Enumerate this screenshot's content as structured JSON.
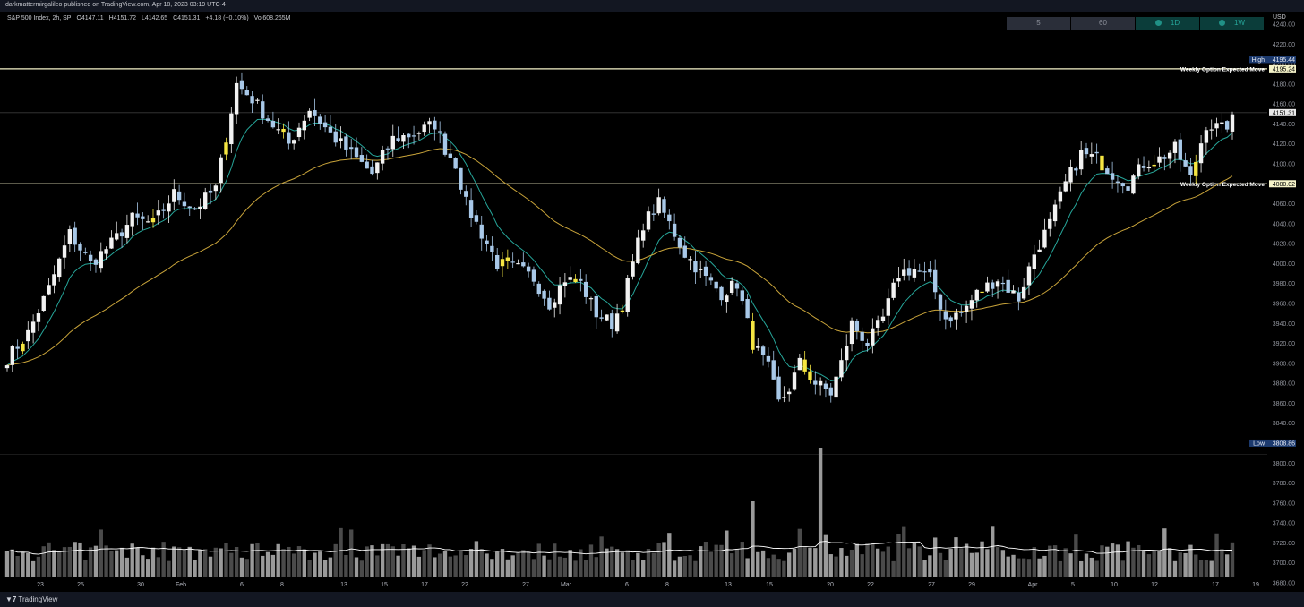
{
  "publisher_line": "darkmattermirgalileo published on TradingView.com, Apr 18, 2023 03:19 UTC-4",
  "legend": {
    "symbol": "S&P 500 Index, 2h, SP",
    "open": "O4147.11",
    "high": "H4151.72",
    "low": "L4142.65",
    "close": "C4151.31",
    "change": "+4.18 (+0.10%)",
    "volume": "Vol608.265M"
  },
  "timeframes": [
    {
      "label": "5",
      "active": false
    },
    {
      "label": "60",
      "active": false
    },
    {
      "label": "1D",
      "active": true
    },
    {
      "label": "1W",
      "active": true
    }
  ],
  "currency": "USD",
  "footer_brand": "TradingView",
  "colors": {
    "background": "#000000",
    "candle_up": "#f2f2f2",
    "candle_down": "#a8c8e8",
    "candle_highlight": "#f5e642",
    "ema_fast": "#26a69a",
    "ema_slow": "#c9a43a",
    "level_line": "#f5f3c9",
    "volume_bar": "#8a8a8a",
    "volume_ma": "#ffffff"
  },
  "chart_data": {
    "type": "candlestick",
    "title": "",
    "xlabel": "",
    "ylabel": "USD",
    "ylim": [
      3680,
      4240
    ],
    "y_ticks": [
      "4240.00",
      "4220.00",
      "4200.00",
      "4180.00",
      "4160.00",
      "4140.00",
      "4120.00",
      "4100.00",
      "4080.00",
      "4060.00",
      "4040.00",
      "4020.00",
      "4000.00",
      "3980.00",
      "3960.00",
      "3940.00",
      "3920.00",
      "3900.00",
      "3880.00",
      "3860.00",
      "3840.00",
      "3820.00",
      "3800.00",
      "3780.00",
      "3760.00",
      "3740.00",
      "3720.00",
      "3700.00",
      "3680.00"
    ],
    "x_ticks": [
      "23",
      "25",
      "30",
      "Feb",
      "6",
      "8",
      "13",
      "15",
      "17",
      "22",
      "27",
      "Mar",
      "6",
      "8",
      "13",
      "15",
      "20",
      "22",
      "27",
      "29",
      "Apr",
      "5",
      "10",
      "12",
      "17",
      "19"
    ],
    "horizontal_levels": [
      {
        "label": "Weekly Option Expected Move",
        "value": 4195.24,
        "value_text": "4195.24"
      },
      {
        "label": "Weekly Option Expected Move",
        "value": 4080.02,
        "value_text": "4080.02"
      }
    ],
    "price_tags": [
      {
        "label": "High",
        "value": 4195.44,
        "value_text": "4195.44"
      },
      {
        "label": "",
        "value": 4151.31,
        "value_text": "4151.31"
      },
      {
        "label": "Low",
        "value": 3808.86,
        "value_text": "3808.86"
      }
    ],
    "close_path": [
      [
        0,
        3905
      ],
      [
        4,
        3930
      ],
      [
        8,
        3975
      ],
      [
        12,
        4030
      ],
      [
        16,
        4000
      ],
      [
        20,
        4020
      ],
      [
        24,
        4045
      ],
      [
        28,
        4040
      ],
      [
        32,
        4070
      ],
      [
        36,
        4055
      ],
      [
        40,
        4075
      ],
      [
        44,
        4180
      ],
      [
        47,
        4165
      ],
      [
        50,
        4145
      ],
      [
        54,
        4120
      ],
      [
        58,
        4155
      ],
      [
        62,
        4130
      ],
      [
        66,
        4110
      ],
      [
        70,
        4090
      ],
      [
        74,
        4125
      ],
      [
        78,
        4130
      ],
      [
        82,
        4140
      ],
      [
        84,
        4115
      ],
      [
        86,
        4100
      ],
      [
        88,
        4060
      ],
      [
        90,
        4040
      ],
      [
        94,
        4000
      ],
      [
        98,
        3995
      ],
      [
        101,
        3985
      ],
      [
        104,
        3960
      ],
      [
        107,
        3985
      ],
      [
        110,
        3980
      ],
      [
        113,
        3950
      ],
      [
        116,
        3940
      ],
      [
        118,
        3960
      ],
      [
        120,
        4000
      ],
      [
        122,
        4040
      ],
      [
        125,
        4060
      ],
      [
        127,
        4040
      ],
      [
        130,
        4010
      ],
      [
        134,
        3985
      ],
      [
        137,
        3970
      ],
      [
        140,
        3980
      ],
      [
        143,
        3920
      ],
      [
        146,
        3895
      ],
      [
        148,
        3860
      ],
      [
        150,
        3875
      ],
      [
        152,
        3900
      ],
      [
        155,
        3880
      ],
      [
        158,
        3870
      ],
      [
        160,
        3900
      ],
      [
        162,
        3940
      ],
      [
        165,
        3920
      ],
      [
        168,
        3945
      ],
      [
        171,
        3990
      ],
      [
        174,
        3995
      ],
      [
        177,
        3985
      ],
      [
        180,
        3945
      ],
      [
        183,
        3950
      ],
      [
        186,
        3970
      ],
      [
        190,
        3985
      ],
      [
        194,
        3965
      ],
      [
        197,
        4010
      ],
      [
        200,
        4040
      ],
      [
        203,
        4080
      ],
      [
        206,
        4110
      ],
      [
        209,
        4105
      ],
      [
        212,
        4090
      ],
      [
        215,
        4080
      ],
      [
        218,
        4100
      ],
      [
        221,
        4105
      ],
      [
        224,
        4115
      ],
      [
        227,
        4085
      ],
      [
        230,
        4140
      ],
      [
        233,
        4135
      ],
      [
        236,
        4148
      ]
    ],
    "candle_count": 236,
    "ema_fast_label": "",
    "ema_slow_label": "",
    "volume": {
      "peak_bar_index": 156,
      "note_values_relative": true
    }
  }
}
